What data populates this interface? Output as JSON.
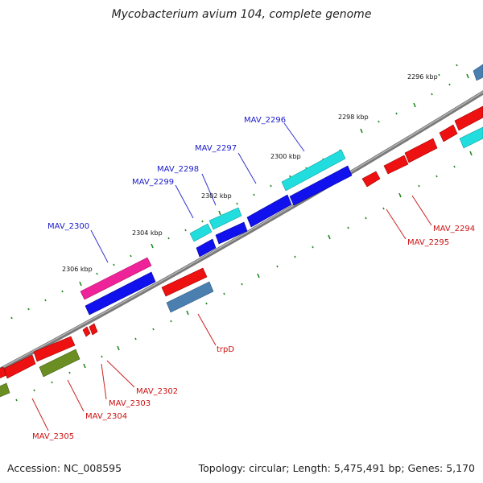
{
  "title": "Mycobacterium avium 104, complete genome",
  "footer": {
    "accession": "Accession: NC_008595",
    "stats": "Topology: circular; Length: 5,475,491 bp; Genes: 5,170"
  },
  "colors": {
    "backbone": "#8a8a8a",
    "forward_tick": "#228822",
    "red_gene": "#ee1111",
    "blue_gene": "#1111ee",
    "cyan_gene": "#22dddd",
    "pink_gene": "#ee2299",
    "steelblue_gene": "#4a7fb0",
    "olive_gene": "#6b8e23",
    "label_blue": "#1a1acc",
    "label_red": "#cc1111"
  },
  "scale_labels": [
    "2296 kbp",
    "2298 kbp",
    "2300 kbp",
    "2302 kbp",
    "2304 kbp",
    "2306 kbp"
  ],
  "gene_labels_top": [
    "MAV_2296",
    "MAV_2297",
    "MAV_2298",
    "MAV_2299",
    "MAV_2300"
  ],
  "gene_labels_bottom": [
    "MAV_2294",
    "MAV_2295",
    "trpD",
    "MAV_2302",
    "MAV_2303",
    "MAV_2304",
    "MAV_2305"
  ]
}
